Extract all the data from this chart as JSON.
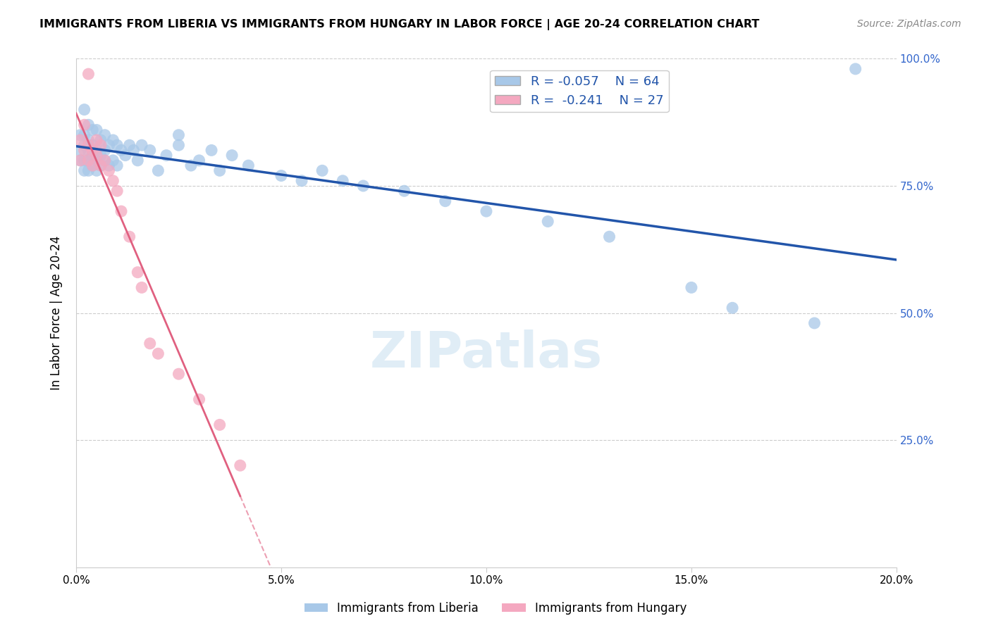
{
  "title": "IMMIGRANTS FROM LIBERIA VS IMMIGRANTS FROM HUNGARY IN LABOR FORCE | AGE 20-24 CORRELATION CHART",
  "source": "Source: ZipAtlas.com",
  "ylabel": "In Labor Force | Age 20-24",
  "xlim": [
    0.0,
    0.2
  ],
  "ylim": [
    0.0,
    1.0
  ],
  "liberia_color": "#a8c8e8",
  "hungary_color": "#f4a8c0",
  "liberia_line_color": "#2255aa",
  "hungary_line_color": "#e06080",
  "watermark": "ZIPatlas",
  "R_liberia": -0.057,
  "N_liberia": 64,
  "R_hungary": -0.241,
  "N_hungary": 27,
  "liberia_x": [
    0.001,
    0.001,
    0.001,
    0.002,
    0.002,
    0.002,
    0.002,
    0.002,
    0.003,
    0.003,
    0.003,
    0.003,
    0.003,
    0.004,
    0.004,
    0.004,
    0.004,
    0.005,
    0.005,
    0.005,
    0.005,
    0.006,
    0.006,
    0.006,
    0.007,
    0.007,
    0.007,
    0.008,
    0.008,
    0.009,
    0.009,
    0.01,
    0.01,
    0.011,
    0.012,
    0.013,
    0.014,
    0.015,
    0.016,
    0.018,
    0.02,
    0.022,
    0.025,
    0.025,
    0.028,
    0.03,
    0.033,
    0.035,
    0.038,
    0.042,
    0.05,
    0.055,
    0.06,
    0.065,
    0.07,
    0.08,
    0.09,
    0.1,
    0.115,
    0.13,
    0.15,
    0.16,
    0.18,
    0.19
  ],
  "liberia_y": [
    0.8,
    0.82,
    0.85,
    0.78,
    0.8,
    0.83,
    0.85,
    0.9,
    0.78,
    0.8,
    0.82,
    0.84,
    0.87,
    0.79,
    0.81,
    0.83,
    0.86,
    0.78,
    0.8,
    0.82,
    0.86,
    0.79,
    0.81,
    0.84,
    0.8,
    0.82,
    0.85,
    0.79,
    0.83,
    0.8,
    0.84,
    0.79,
    0.83,
    0.82,
    0.81,
    0.83,
    0.82,
    0.8,
    0.83,
    0.82,
    0.78,
    0.81,
    0.83,
    0.85,
    0.79,
    0.8,
    0.82,
    0.78,
    0.81,
    0.79,
    0.77,
    0.76,
    0.78,
    0.76,
    0.75,
    0.74,
    0.72,
    0.7,
    0.68,
    0.65,
    0.55,
    0.51,
    0.48,
    0.98
  ],
  "hungary_x": [
    0.001,
    0.001,
    0.002,
    0.002,
    0.003,
    0.003,
    0.003,
    0.004,
    0.004,
    0.005,
    0.005,
    0.006,
    0.006,
    0.007,
    0.008,
    0.009,
    0.01,
    0.011,
    0.013,
    0.015,
    0.016,
    0.018,
    0.02,
    0.025,
    0.03,
    0.035,
    0.04
  ],
  "hungary_y": [
    0.8,
    0.84,
    0.82,
    0.87,
    0.8,
    0.83,
    0.97,
    0.79,
    0.82,
    0.81,
    0.84,
    0.79,
    0.83,
    0.8,
    0.78,
    0.76,
    0.74,
    0.7,
    0.65,
    0.58,
    0.55,
    0.44,
    0.42,
    0.38,
    0.33,
    0.28,
    0.2
  ]
}
